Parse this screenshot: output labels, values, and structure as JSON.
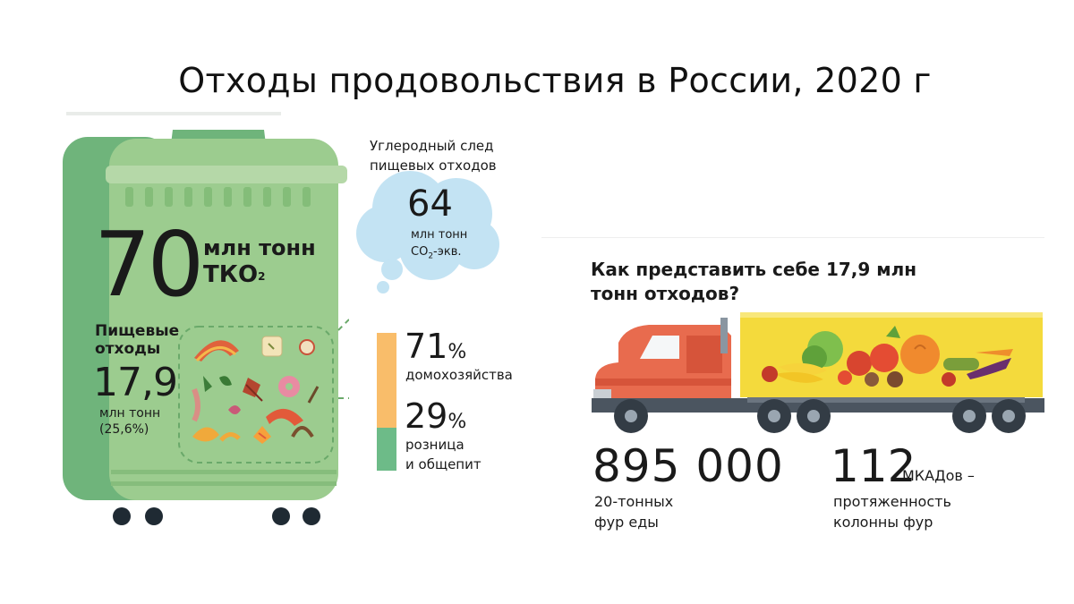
{
  "title": "Отходы продовольствия в России, 2020 г",
  "waste": {
    "total_value": "70",
    "total_unit": "млн тонн",
    "total_label": "ТКО",
    "total_footnote": "2",
    "food_label": "Пищевые отходы",
    "food_value": "17,9",
    "food_unit": "млн тонн",
    "food_share": "(25,6%)"
  },
  "carbon": {
    "caption_line1": "Углеродный след",
    "caption_line2": "пищевых отходов",
    "value": "64",
    "unit": "млн тонн",
    "co2_prefix": "CO",
    "co2_sub": "2",
    "co2_suffix": "-экв."
  },
  "split": {
    "households_value": "71",
    "households_unit": "%",
    "households_label": "домохозяйства",
    "retail_value": "29",
    "retail_unit": "%",
    "retail_label_line1": "розница",
    "retail_label_line2": "и общепит",
    "households_color": "#f9bd6a",
    "retail_color": "#6dbb88"
  },
  "trucks": {
    "question_line1": "Как представить себе 17,9 млн",
    "question_line2": "тонн отходов?",
    "trucks_value": "895 000",
    "trucks_label_line1": "20-тонных",
    "trucks_label_line2": "фур еды",
    "mkad_value": "112",
    "mkad_unit": "МКАДов –",
    "mkad_label_line1": "протяженность",
    "mkad_label_line2": "колонны фур"
  },
  "icons": [
    "trash-bin-icon",
    "cloud-icon",
    "truck-icon",
    "vegetables-icon",
    "food-scraps-icon"
  ]
}
